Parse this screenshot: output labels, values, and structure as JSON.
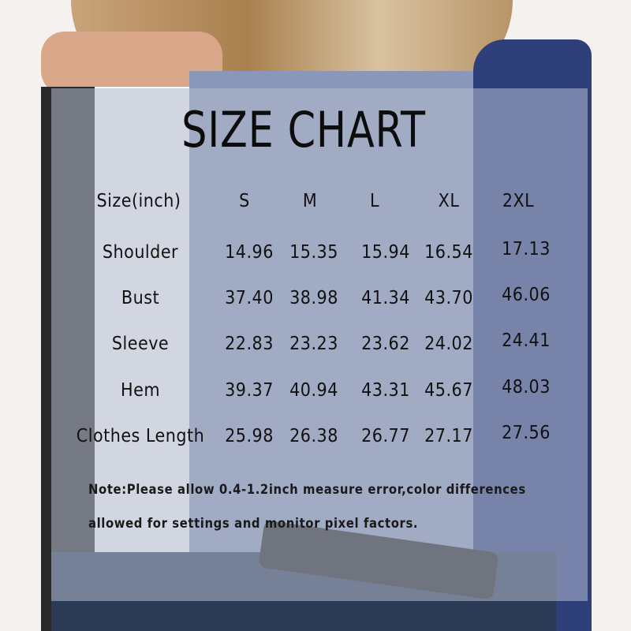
{
  "title": "SIZE CHART",
  "table": {
    "header_label": "Size(inch)",
    "sizes": [
      "S",
      "M",
      "L",
      "XL",
      "2XL"
    ],
    "rows": [
      {
        "label": "Shoulder",
        "values": [
          "14.96",
          "15.35",
          "15.94",
          "16.54",
          "17.13"
        ]
      },
      {
        "label": "Bust",
        "values": [
          "37.40",
          "38.98",
          "41.34",
          "43.70",
          "46.06"
        ]
      },
      {
        "label": "Sleeve",
        "values": [
          "22.83",
          "23.23",
          "23.62",
          "24.02",
          "24.41"
        ]
      },
      {
        "label": "Hem",
        "values": [
          "39.37",
          "40.94",
          "43.31",
          "45.67",
          "48.03"
        ]
      },
      {
        "label": "Clothes Length",
        "values": [
          "25.98",
          "26.38",
          "26.77",
          "27.17",
          "27.56"
        ]
      }
    ]
  },
  "note": {
    "line1": "Note:Please allow 0.4-1.2inch measure error,color differences",
    "line2": "allowed for settings and monitor pixel factors."
  },
  "colors": {
    "shirt_black": "#2a2a2a",
    "shirt_white": "#f7f7f7",
    "shirt_blue": "#8a97b8",
    "sleeve_navy": "#2e3f7a",
    "hair": "#b08a5a"
  }
}
